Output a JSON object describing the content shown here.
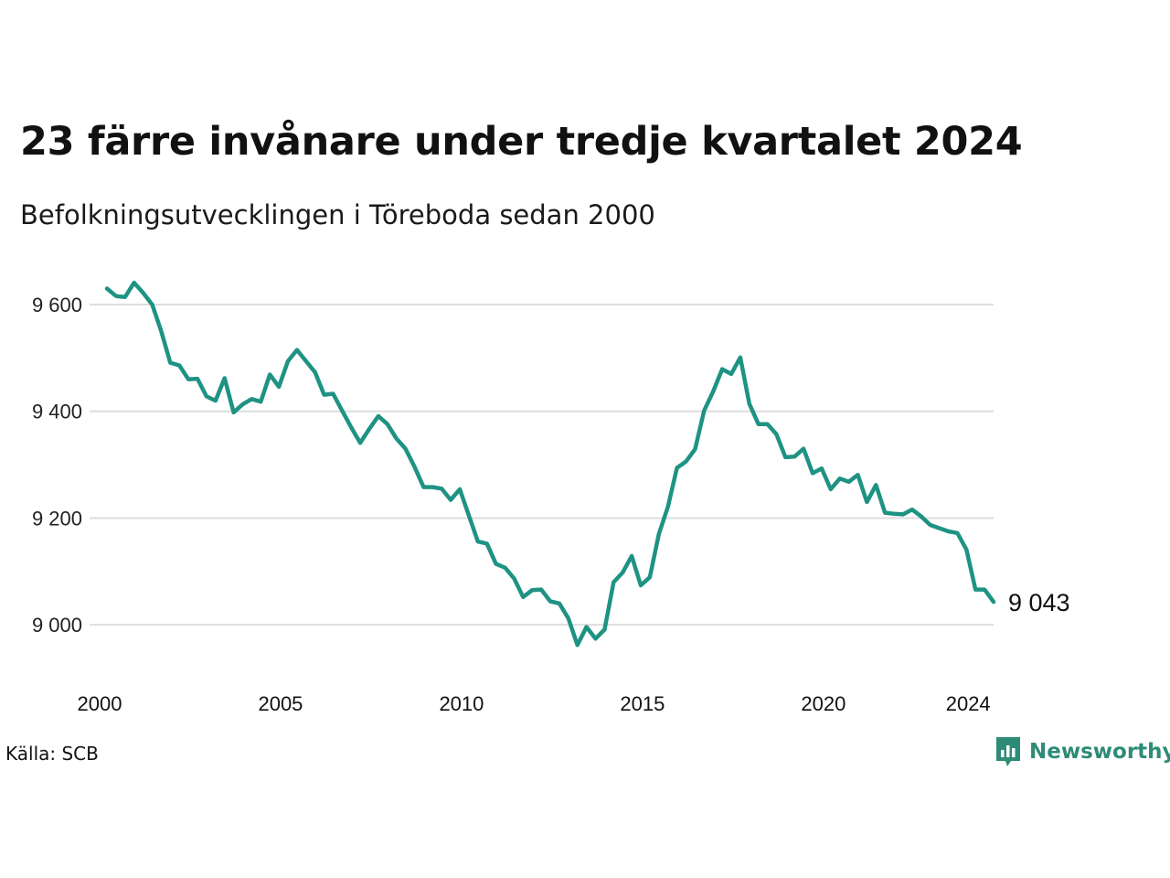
{
  "title": "23 färre invånare under tredje kvartalet 2024",
  "subtitle": "Befolkningsutvecklingen i Töreboda sedan 2000",
  "source": "Källa: SCB",
  "brand": "Newsworthy",
  "colors": {
    "line": "#1e9383",
    "grid": "#dddddd",
    "brand": "#2e8b77"
  },
  "chart_data": {
    "type": "line",
    "title": "23 färre invånare under tredje kvartalet 2024",
    "subtitle": "Befolkningsutvecklingen i Töreboda sedan 2000",
    "xlabel": "",
    "ylabel": "",
    "ylim": [
      8930,
      9660
    ],
    "xlim": [
      2000,
      2024.75
    ],
    "y_ticks": [
      9000,
      9200,
      9400,
      9600
    ],
    "y_tick_labels": [
      "9 000",
      "9 200",
      "9 400",
      "9 600"
    ],
    "x_ticks": [
      2000,
      2005,
      2010,
      2015,
      2020,
      2024
    ],
    "x_tick_labels": [
      "2000",
      "2005",
      "2010",
      "2015",
      "2020",
      "2024"
    ],
    "grid": "horizontal",
    "legend": "none",
    "end_label": "9 043",
    "series": [
      {
        "x": [
          2000.0,
          2000.25,
          2000.5,
          2000.75,
          2001.0,
          2001.25,
          2001.5,
          2001.75,
          2002.0,
          2002.25,
          2002.5,
          2002.75,
          2003.0,
          2003.25,
          2003.5,
          2003.75,
          2004.0,
          2004.25,
          2004.5,
          2004.75,
          2005.0,
          2005.25,
          2005.5,
          2005.75,
          2006.0,
          2006.25,
          2006.5,
          2006.75,
          2007.0,
          2007.25,
          2007.5,
          2007.75,
          2008.0,
          2008.25,
          2008.5,
          2008.75,
          2009.0,
          2009.25,
          2009.5,
          2009.75,
          2010.0,
          2010.25,
          2010.5,
          2010.75,
          2011.0,
          2011.25,
          2011.5,
          2011.75,
          2012.0,
          2012.25,
          2012.5,
          2012.75,
          2013.0,
          2013.25,
          2013.5,
          2013.75,
          2014.0,
          2014.25,
          2014.5,
          2014.75,
          2015.0,
          2015.25,
          2015.5,
          2015.75,
          2016.0,
          2016.25,
          2016.5,
          2016.75,
          2017.0,
          2017.25,
          2017.5,
          2017.75,
          2018.0,
          2018.25,
          2018.5,
          2018.75,
          2019.0,
          2019.25,
          2019.5,
          2019.75,
          2020.0,
          2020.25,
          2020.5,
          2020.75,
          2021.0,
          2021.25,
          2021.5,
          2021.75,
          2022.0,
          2022.25,
          2022.5,
          2022.75,
          2023.0,
          2023.25,
          2023.5,
          2023.75,
          2024.0,
          2024.25,
          2024.5
        ],
        "values": [
          9630,
          9616,
          9614,
          9641,
          9622,
          9600,
          9550,
          9491,
          9486,
          9460,
          9461,
          9428,
          9420,
          9462,
          9398,
          9413,
          9423,
          9418,
          9469,
          9446,
          9494,
          9515,
          9494,
          9473,
          9431,
          9433,
          9401,
          9370,
          9341,
          9367,
          9391,
          9376,
          9349,
          9330,
          9296,
          9258,
          9258,
          9255,
          9234,
          9254,
          9205,
          9156,
          9152,
          9114,
          9107,
          9087,
          9052,
          9065,
          9066,
          9044,
          9040,
          9012,
          8962,
          8996,
          8974,
          8991,
          9080,
          9098,
          9129,
          9074,
          9089,
          9170,
          9221,
          9294,
          9306,
          9329,
          9401,
          9437,
          9479,
          9470,
          9501,
          9414,
          9376,
          9376,
          9357,
          9314,
          9315,
          9330,
          9284,
          9293,
          9254,
          9274,
          9268,
          9281,
          9230,
          9262,
          9210,
          9208,
          9207,
          9216,
          9203,
          9187,
          9181,
          9175,
          9172,
          9141,
          9066,
          9066,
          9043
        ]
      }
    ]
  }
}
